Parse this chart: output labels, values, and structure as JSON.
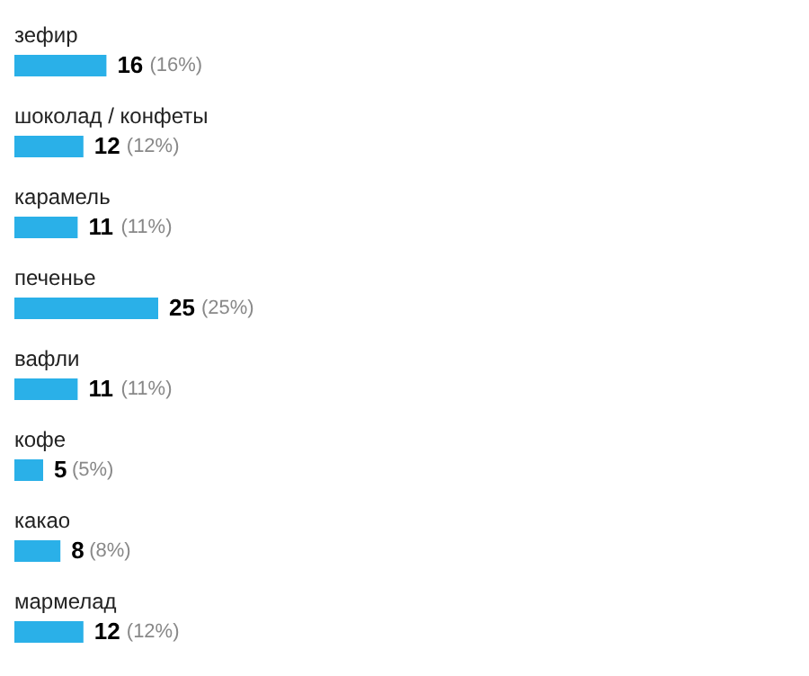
{
  "chart_data": {
    "type": "bar",
    "orientation": "horizontal",
    "categories": [
      "зефир",
      "шоколад / конфеты",
      "карамель",
      "печенье",
      "вафли",
      "кофе",
      "какао",
      "мармелад"
    ],
    "values": [
      16,
      12,
      11,
      25,
      11,
      5,
      8,
      12
    ],
    "data_labels": true,
    "annotations": [
      {
        "text": "(16%)",
        "x": 16,
        "y": "зефир"
      },
      {
        "text": "(12%)",
        "x": 12,
        "y": "шоколад / конфеты"
      },
      {
        "text": "(11%)",
        "x": 11,
        "y": "карамель"
      },
      {
        "text": "(25%)",
        "x": 25,
        "y": "печенье"
      },
      {
        "text": "(11%)",
        "x": 11,
        "y": "вафли"
      },
      {
        "text": "(5%)",
        "x": 5,
        "y": "кофе"
      },
      {
        "text": "(8%)",
        "x": 8,
        "y": "какао"
      },
      {
        "text": "(12%)",
        "x": 12,
        "y": "мармелад"
      }
    ],
    "color": "#2ab0e8"
  }
}
